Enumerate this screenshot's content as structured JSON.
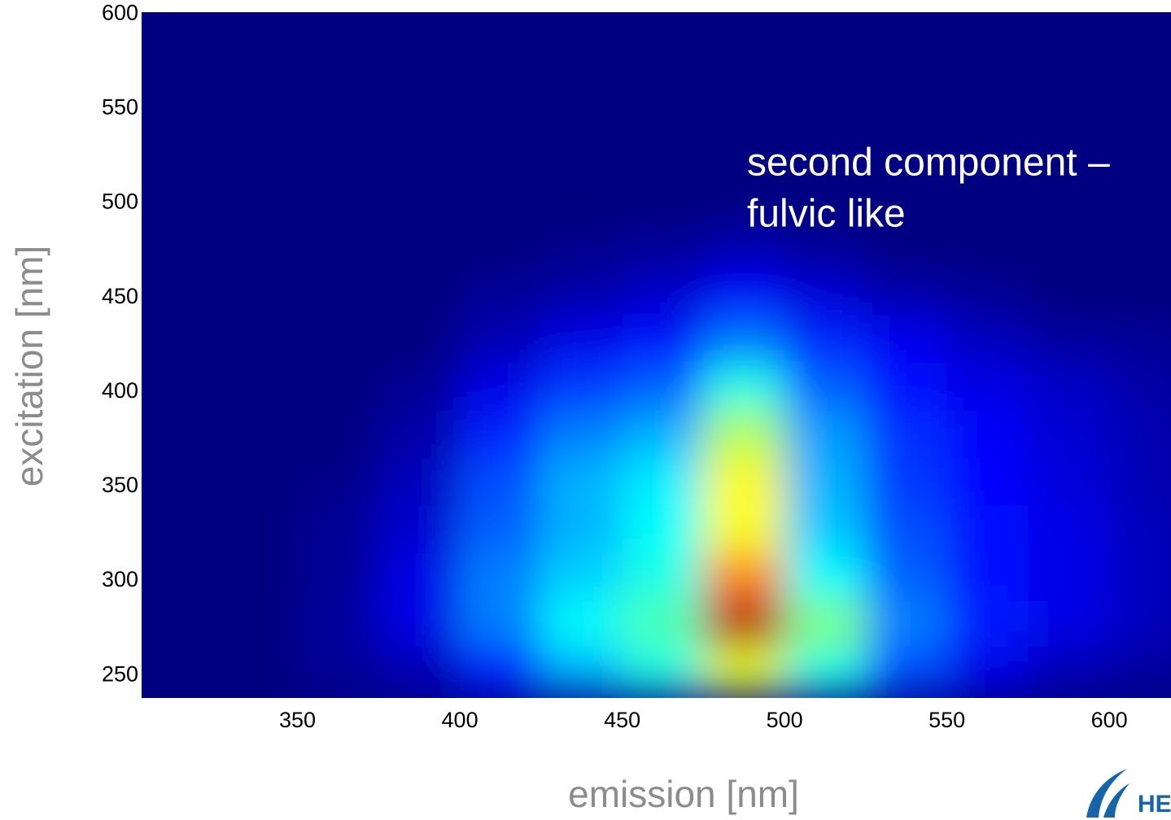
{
  "chart_data": {
    "type": "heatmap",
    "xlabel": "emission [nm]",
    "ylabel": "excitation [nm]",
    "annotation": [
      "second component –",
      "fulvic like"
    ],
    "xlim": [
      302,
      619
    ],
    "ylim": [
      238,
      601
    ],
    "xticks": [
      350,
      400,
      450,
      500,
      550,
      600
    ],
    "yticks": [
      250,
      300,
      350,
      400,
      450,
      500,
      550,
      600
    ],
    "colormap": "jet",
    "xbins": [
      300,
      325,
      350,
      375,
      400,
      425,
      450,
      475,
      500,
      525,
      550,
      575,
      600,
      625
    ],
    "ybins": [
      240,
      265,
      290,
      315,
      340,
      365,
      390,
      415,
      440,
      465,
      490,
      515,
      540,
      565,
      590,
      615
    ],
    "z": [
      [
        0,
        0,
        0.02,
        0.05,
        0.15,
        0.3,
        0.4,
        0.6,
        0.4,
        0.2,
        0.1,
        0.05,
        0.03
      ],
      [
        0,
        0,
        0.03,
        0.1,
        0.25,
        0.38,
        0.45,
        0.95,
        0.5,
        0.25,
        0.15,
        0.1,
        0.06
      ],
      [
        0,
        0,
        0.02,
        0.1,
        0.25,
        0.33,
        0.4,
        0.75,
        0.38,
        0.22,
        0.14,
        0.1,
        0.06
      ],
      [
        0,
        0,
        0.02,
        0.08,
        0.22,
        0.3,
        0.38,
        0.62,
        0.32,
        0.2,
        0.14,
        0.1,
        0.06
      ],
      [
        0,
        0,
        0.01,
        0.06,
        0.2,
        0.3,
        0.36,
        0.63,
        0.3,
        0.18,
        0.13,
        0.09,
        0.05
      ],
      [
        0,
        0,
        0,
        0.04,
        0.16,
        0.25,
        0.3,
        0.55,
        0.28,
        0.17,
        0.12,
        0.08,
        0.05
      ],
      [
        0,
        0,
        0,
        0.02,
        0.1,
        0.18,
        0.22,
        0.4,
        0.22,
        0.14,
        0.1,
        0.07,
        0.04
      ],
      [
        0,
        0,
        0,
        0,
        0.05,
        0.1,
        0.14,
        0.24,
        0.16,
        0.11,
        0.06,
        0.03,
        0.02
      ],
      [
        0,
        0,
        0,
        0,
        0.02,
        0.04,
        0.07,
        0.12,
        0.08,
        0.04,
        0.02,
        0,
        0
      ],
      [
        0,
        0,
        0,
        0,
        0,
        0.01,
        0.02,
        0.04,
        0.02,
        0,
        0,
        0,
        0
      ],
      [
        0,
        0,
        0,
        0,
        0,
        0,
        0,
        0,
        0,
        0,
        0,
        0,
        0
      ],
      [
        0,
        0,
        0,
        0,
        0,
        0,
        0,
        0,
        0,
        0,
        0,
        0,
        0
      ],
      [
        0,
        0,
        0,
        0,
        0,
        0,
        0,
        0,
        0,
        0,
        0,
        0,
        0
      ],
      [
        0,
        0,
        0,
        0,
        0,
        0,
        0,
        0,
        0,
        0,
        0,
        0,
        0
      ],
      [
        0,
        0,
        0,
        0,
        0,
        0,
        0,
        0,
        0,
        0,
        0,
        0,
        0
      ]
    ]
  },
  "logo_text": "HE"
}
